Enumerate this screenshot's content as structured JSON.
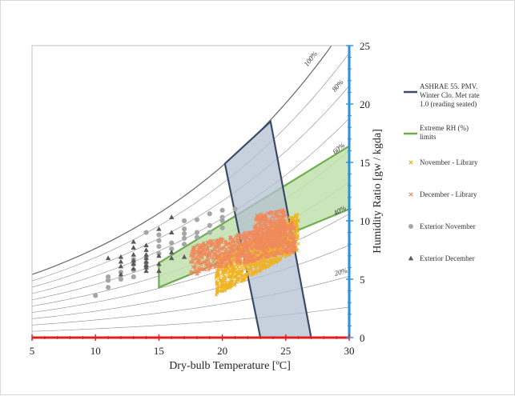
{
  "chart_data": {
    "type": "scatter",
    "chart_title": "",
    "xlabel": "Dry-bulb Temperature [ºC]",
    "ylabel": "Humidity Ratio [gw / kgda]",
    "xlim": [
      5,
      30
    ],
    "ylim": [
      0,
      25
    ],
    "x_ticks": [
      "5",
      "10",
      "15",
      "20",
      "25",
      "30"
    ],
    "y_ticks": [
      "0",
      "5",
      "10",
      "15",
      "20",
      "25"
    ],
    "rh_curves": [
      {
        "label": "10%",
        "rh": 0.1,
        "show_label": false
      },
      {
        "label": "20%",
        "rh": 0.2,
        "show_label": true
      },
      {
        "label": "30%",
        "rh": 0.3,
        "show_label": false
      },
      {
        "label": "40%",
        "rh": 0.4,
        "show_label": true
      },
      {
        "label": "50%",
        "rh": 0.5,
        "show_label": false
      },
      {
        "label": "60%",
        "rh": 0.6,
        "show_label": true
      },
      {
        "label": "70%",
        "rh": 0.7,
        "show_label": false
      },
      {
        "label": "80%",
        "rh": 0.8,
        "show_label": true
      },
      {
        "label": "90%",
        "rh": 0.9,
        "show_label": false
      },
      {
        "label": "100%",
        "rh": 1.0,
        "show_label": true
      }
    ],
    "comfort_zone": {
      "name": "ASHRAE 55. PMV. Winter Clo. Met rate 1.0 (reading seated)",
      "polygon": [
        [
          20.2,
          14.9
        ],
        [
          23.8,
          18.5
        ],
        [
          27.0,
          0.0
        ],
        [
          23.0,
          0.0
        ]
      ],
      "fill": "#b4c0d2",
      "stroke": "#3c4a6a"
    },
    "rh_limits": {
      "name": "Extreme RH (%) limits",
      "polygon": [
        [
          15.0,
          6.4
        ],
        [
          30.0,
          16.4
        ],
        [
          30.0,
          11.0
        ],
        [
          15.0,
          4.3
        ]
      ],
      "fill": "#bfe0ad",
      "stroke": "#6fad4f"
    },
    "series": [
      {
        "name": "November - Library",
        "marker": "x",
        "color": "#f0b323"
      },
      {
        "name": "December - Library",
        "marker": "x",
        "color": "#f08a5d"
      },
      {
        "name": "Exterior November",
        "marker": "circle",
        "color": "#a6a6a6",
        "points": [
          [
            10.0,
            3.6
          ],
          [
            11.0,
            4.3
          ],
          [
            11.0,
            4.9
          ],
          [
            12.0,
            5.0
          ],
          [
            12.0,
            5.6
          ],
          [
            13.0,
            5.2
          ],
          [
            13.0,
            5.8
          ],
          [
            13.0,
            6.3
          ],
          [
            13.0,
            6.7
          ],
          [
            14.0,
            6.1
          ],
          [
            14.0,
            6.4
          ],
          [
            14.0,
            6.9
          ],
          [
            15.0,
            7.2
          ],
          [
            15.0,
            7.8
          ],
          [
            15.0,
            8.3
          ],
          [
            15.0,
            8.8
          ],
          [
            16.0,
            7.6
          ],
          [
            16.0,
            8.1
          ],
          [
            17.0,
            8.0
          ],
          [
            17.0,
            8.5
          ],
          [
            17.0,
            8.9
          ],
          [
            17.0,
            9.3
          ],
          [
            18.0,
            8.6
          ],
          [
            18.0,
            9.0
          ],
          [
            19.0,
            9.0
          ],
          [
            19.0,
            9.6
          ],
          [
            20.0,
            9.4
          ],
          [
            20.0,
            10.0
          ],
          [
            20.0,
            10.3
          ],
          [
            17.0,
            10.0
          ],
          [
            18.0,
            10.1
          ],
          [
            19.0,
            10.6
          ],
          [
            20.0,
            10.9
          ],
          [
            21.0,
            11.0
          ],
          [
            14.0,
            9.0
          ],
          [
            11.0,
            5.2
          ]
        ]
      },
      {
        "name": "Exterior December",
        "marker": "triangle",
        "color": "#595959",
        "points": [
          [
            11.0,
            6.8
          ],
          [
            12.0,
            6.1
          ],
          [
            12.0,
            6.5
          ],
          [
            12.0,
            6.9
          ],
          [
            12.0,
            5.4
          ],
          [
            13.0,
            5.9
          ],
          [
            13.0,
            6.3
          ],
          [
            13.0,
            6.6
          ],
          [
            13.0,
            7.1
          ],
          [
            13.0,
            7.7
          ],
          [
            13.0,
            8.2
          ],
          [
            14.0,
            5.7
          ],
          [
            14.0,
            6.0
          ],
          [
            14.0,
            6.2
          ],
          [
            14.0,
            6.5
          ],
          [
            14.0,
            6.8
          ],
          [
            14.0,
            7.1
          ],
          [
            14.0,
            7.5
          ],
          [
            14.0,
            7.9
          ],
          [
            15.0,
            5.7
          ],
          [
            15.0,
            6.3
          ],
          [
            15.0,
            7.0
          ],
          [
            16.0,
            6.8
          ],
          [
            16.0,
            7.3
          ],
          [
            17.0,
            6.9
          ],
          [
            16.0,
            10.3
          ],
          [
            15.0,
            9.3
          ],
          [
            16.0,
            9.0
          ]
        ]
      }
    ]
  },
  "legend": {
    "items": [
      {
        "label": "ASHRAE 55. PMV. Winter Clo. Met rate 1.0 (reading seated)",
        "lines": [
          "ASHRAE 55. PMV.",
          "Winter Clo. Met rate",
          "1.0 (reading seated)"
        ],
        "marker": "line",
        "color": "#3c4a6a"
      },
      {
        "label": "Extreme RH (%) limits",
        "lines": [
          "Extreme RH (%)",
          "limits"
        ],
        "marker": "line",
        "color": "#6fad4f"
      },
      {
        "label": "November - Library",
        "lines": [
          "November - Library"
        ],
        "marker": "x",
        "color": "#f0b323"
      },
      {
        "label": "December - Library",
        "lines": [
          "December - Library"
        ],
        "marker": "x",
        "color": "#f08a5d"
      },
      {
        "label": "Exterior November",
        "lines": [
          "Exterior November"
        ],
        "marker": "circle",
        "color": "#a6a6a6"
      },
      {
        "label": "Exterior December",
        "lines": [
          "Exterior December"
        ],
        "marker": "triangle",
        "color": "#595959"
      }
    ]
  },
  "colors": {
    "y_axis": "#2e8fd6",
    "x_axis": "#e02020",
    "saturation_curve": "#666666",
    "rh_lines": "#8a8a8a"
  }
}
